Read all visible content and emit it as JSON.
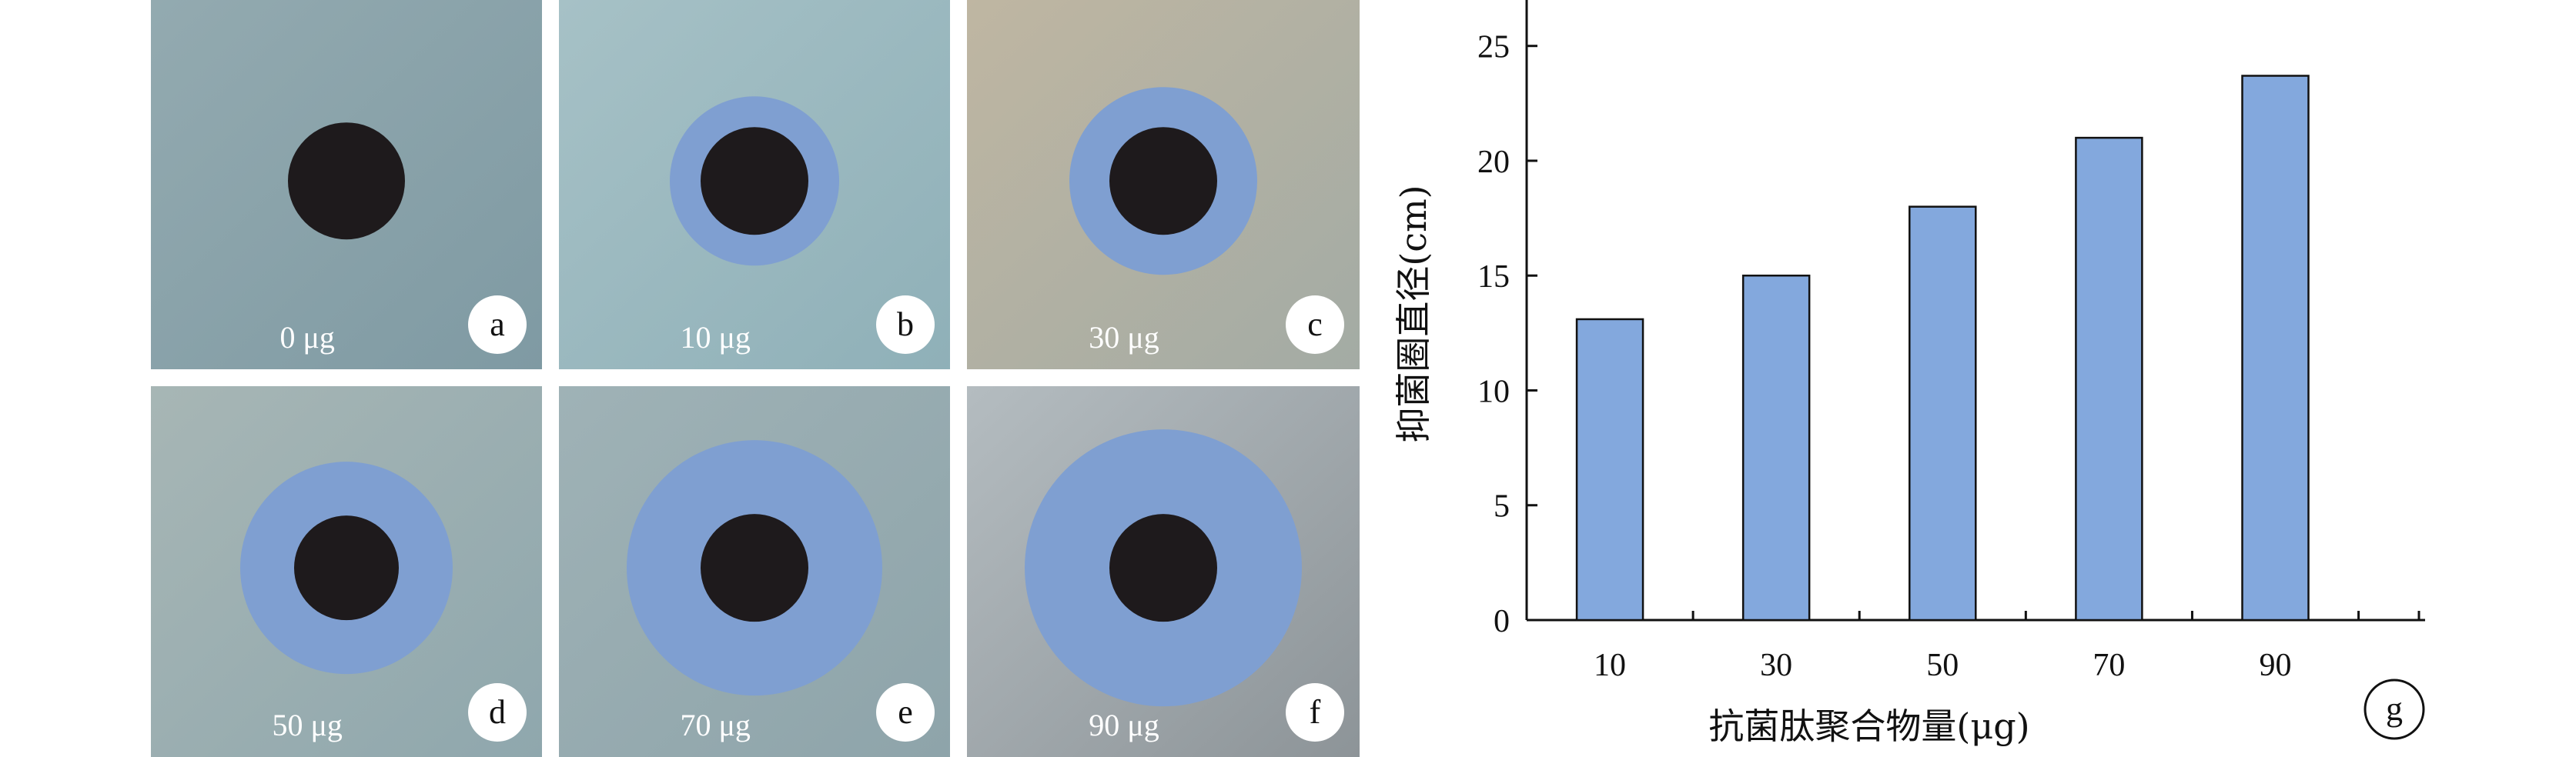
{
  "panels": [
    {
      "letter": "a",
      "dose": "0 μg",
      "inhibition_ring": false,
      "bg": "#7f9aa3",
      "bg2": "#93aab0"
    },
    {
      "letter": "b",
      "dose": "10 μg",
      "inhibition_ring": true,
      "bg": "#8fb0b8",
      "bg2": "#a6c1c6"
    },
    {
      "letter": "c",
      "dose": "30 μg",
      "inhibition_ring": true,
      "bg": "#a3aba4",
      "bg2": "#bfb6a2"
    },
    {
      "letter": "d",
      "dose": "50 μg",
      "inhibition_ring": true,
      "bg": "#8fa7ad",
      "bg2": "#a7b6b5"
    },
    {
      "letter": "e",
      "dose": "70 μg",
      "inhibition_ring": true,
      "bg": "#8ea4aa",
      "bg2": "#9fb2b6"
    },
    {
      "letter": "f",
      "dose": "90 μg",
      "inhibition_ring": true,
      "bg": "#8d9498",
      "bg2": "#b4bcc0"
    }
  ],
  "colors": {
    "ring": "#7f9fd1",
    "disc": "#1e1a1c",
    "bar_fill": "#83a8dd",
    "bar_stroke": "#111111",
    "axis": "#111111",
    "badge_fill": "#ffffff",
    "dose_label": "#ffffff"
  },
  "chart_data": {
    "type": "bar",
    "panel_label": "g",
    "categories": [
      "10",
      "30",
      "50",
      "70",
      "90"
    ],
    "values": [
      13.1,
      15.0,
      18.0,
      21.0,
      23.7
    ],
    "xlabel": "抗菌肽聚合物量(μg)",
    "ylabel": "抑菌圈直径(cm)",
    "ylim": [
      0,
      27
    ],
    "yticks": [
      0,
      5,
      10,
      15,
      20,
      25
    ],
    "grid": false
  }
}
